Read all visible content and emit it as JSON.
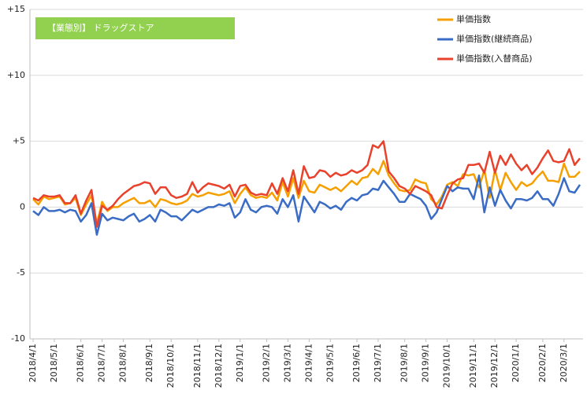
{
  "chart_data": {
    "type": "line",
    "title": "【業態別】 ドラッグストア",
    "categories": [
      "2018/4/1",
      null,
      null,
      null,
      "2018/5/1",
      null,
      null,
      null,
      null,
      "2018/6/1",
      null,
      null,
      null,
      "2018/7/1",
      null,
      null,
      null,
      "2018/8/1",
      null,
      null,
      null,
      null,
      "2018/9/1",
      null,
      null,
      null,
      "2018/10/1",
      null,
      null,
      null,
      null,
      "2018/11/1",
      null,
      null,
      null,
      "2018/12/1",
      null,
      null,
      null,
      "2019/1/1",
      null,
      null,
      null,
      null,
      "2019/2/1",
      null,
      null,
      null,
      "2019/3/1",
      null,
      null,
      null,
      "2019/4/1",
      null,
      null,
      null,
      "2019/5/1",
      null,
      null,
      null,
      null,
      "2019/6/1",
      null,
      null,
      null,
      "2019/7/1",
      null,
      null,
      null,
      null,
      "2019/8/1",
      null,
      null,
      null,
      "2019/9/1",
      null,
      null,
      null,
      "2019/10/1",
      null,
      null,
      null,
      null,
      "2019/11/1",
      null,
      null,
      null,
      "2019/12/1",
      null,
      null,
      null,
      "2020/1/1",
      null,
      null,
      null,
      null,
      "2020/2/1",
      null,
      null,
      null,
      "2020/3/1",
      null,
      null,
      null
    ],
    "series": [
      {
        "name": "単価指数",
        "color": "#f5a000",
        "values": [
          0.6,
          0.2,
          0.8,
          0.6,
          0.7,
          0.8,
          0.2,
          0.3,
          0.7,
          -0.6,
          0.2,
          0.9,
          -1.3,
          0.4,
          -0.3,
          0.0,
          0.0,
          0.3,
          0.5,
          0.7,
          0.3,
          0.3,
          0.5,
          0.0,
          0.6,
          0.5,
          0.3,
          0.2,
          0.3,
          0.5,
          1.0,
          0.8,
          0.9,
          1.1,
          1.0,
          0.9,
          1.0,
          1.2,
          0.3,
          1.0,
          1.5,
          0.9,
          0.7,
          0.8,
          0.7,
          1.1,
          0.5,
          1.9,
          0.8,
          2.2,
          0.7,
          2.0,
          1.2,
          1.1,
          1.7,
          1.5,
          1.3,
          1.5,
          1.2,
          1.6,
          2.0,
          1.7,
          2.2,
          2.3,
          2.9,
          2.5,
          3.5,
          2.4,
          1.8,
          1.3,
          1.2,
          1.3,
          2.1,
          1.9,
          1.8,
          0.6,
          0.2,
          0.8,
          1.7,
          1.9,
          1.6,
          2.5,
          2.4,
          2.5,
          1.5,
          2.8,
          0.7,
          2.8,
          1.3,
          2.6,
          1.9,
          1.3,
          1.9,
          1.6,
          1.8,
          2.3,
          2.7,
          2.0,
          2.0,
          1.9,
          3.3,
          2.3,
          2.3,
          2.7
        ]
      },
      {
        "name": "単価指数(継続商品)",
        "color": "#3a6cc5",
        "values": [
          -0.3,
          -0.6,
          0.0,
          -0.3,
          -0.3,
          -0.2,
          -0.4,
          -0.2,
          -0.3,
          -1.1,
          -0.6,
          0.3,
          -2.1,
          -0.5,
          -1.0,
          -0.8,
          -0.9,
          -1.0,
          -0.7,
          -0.5,
          -1.1,
          -0.9,
          -0.6,
          -1.1,
          -0.2,
          -0.4,
          -0.7,
          -0.7,
          -1.0,
          -0.6,
          -0.2,
          -0.4,
          -0.2,
          0.0,
          0.0,
          0.2,
          0.1,
          0.3,
          -0.8,
          -0.4,
          0.6,
          -0.2,
          -0.4,
          0.0,
          0.1,
          0.0,
          -0.5,
          0.6,
          0.0,
          0.9,
          -1.1,
          0.8,
          0.2,
          -0.4,
          0.4,
          0.2,
          -0.1,
          0.1,
          -0.2,
          0.4,
          0.7,
          0.5,
          0.9,
          1.0,
          1.4,
          1.3,
          2.0,
          1.5,
          1.0,
          0.4,
          0.4,
          1.0,
          0.8,
          0.6,
          0.1,
          -0.9,
          -0.4,
          0.6,
          1.6,
          1.2,
          1.5,
          1.4,
          1.4,
          0.6,
          2.4,
          -0.4,
          1.5,
          0.1,
          1.3,
          0.5,
          -0.1,
          0.6,
          0.6,
          0.5,
          0.7,
          1.2,
          0.6,
          0.6,
          0.1,
          1.0,
          2.2,
          1.2,
          1.1,
          1.7
        ]
      },
      {
        "name": "単価指数(入替商品)",
        "color": "#e8412c",
        "values": [
          0.7,
          0.5,
          0.9,
          0.8,
          0.8,
          0.9,
          0.3,
          0.3,
          0.9,
          -0.5,
          0.5,
          1.3,
          -1.5,
          0.1,
          -0.2,
          0.1,
          0.6,
          1.0,
          1.3,
          1.6,
          1.7,
          1.9,
          1.8,
          1.0,
          1.5,
          1.5,
          0.9,
          0.7,
          0.8,
          1.0,
          1.9,
          1.1,
          1.5,
          1.8,
          1.7,
          1.6,
          1.4,
          1.7,
          0.8,
          1.6,
          1.7,
          1.1,
          0.9,
          1.0,
          0.9,
          1.8,
          1.0,
          2.2,
          1.2,
          2.8,
          1.0,
          3.1,
          2.2,
          2.3,
          2.8,
          2.7,
          2.3,
          2.6,
          2.4,
          2.5,
          2.8,
          2.6,
          2.8,
          3.2,
          4.7,
          4.5,
          5.0,
          2.7,
          2.2,
          1.6,
          1.4,
          1.0,
          1.6,
          1.4,
          1.2,
          0.9,
          0.0,
          -0.1,
          0.9,
          1.8,
          2.1,
          2.2,
          3.2,
          3.2,
          3.3,
          2.6,
          4.2,
          2.6,
          3.9,
          3.2,
          4.0,
          3.3,
          2.8,
          3.2,
          2.5,
          3.0,
          3.7,
          4.3,
          3.5,
          3.4,
          3.5,
          4.4,
          3.2,
          3.7
        ]
      }
    ],
    "ylim": [
      -10,
      15
    ],
    "yticks": [
      -10,
      -5,
      0,
      {
        "value": 5,
        "label": "+5"
      },
      {
        "value": 10,
        "label": "+10"
      },
      {
        "value": 15,
        "label": "+15"
      }
    ],
    "grid": true,
    "legend": "upper right",
    "title_color": "#92d050"
  }
}
